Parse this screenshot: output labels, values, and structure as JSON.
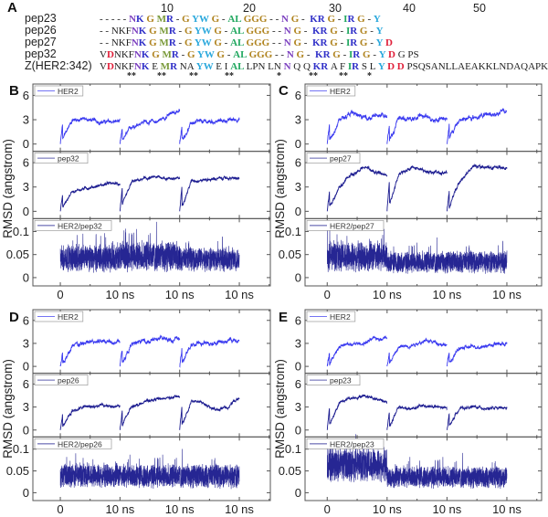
{
  "panel_a": {
    "label": "A",
    "position_numbers": [
      "10",
      "20",
      "30",
      "40",
      "50"
    ],
    "colors": {
      "k": "#222222",
      "p": "#7b3fbf",
      "b": "#3030c8",
      "g": "#b08420",
      "o": "#7a9a3a",
      "c": "#2aa8dc",
      "n": "#22a860",
      "r": "#e0203a"
    },
    "rows": [
      {
        "name": "pep23",
        "segments": [
          [
            "- - - - - ",
            "k"
          ],
          [
            "N",
            "p"
          ],
          [
            "K ",
            "b"
          ],
          [
            "G ",
            "g"
          ],
          [
            "M",
            "o"
          ],
          [
            "R",
            "b"
          ],
          [
            " - ",
            "k"
          ],
          [
            "G ",
            "g"
          ],
          [
            "YW ",
            "c"
          ],
          [
            "G ",
            "g"
          ],
          [
            "- ",
            "k"
          ],
          [
            "AL ",
            "n"
          ],
          [
            "GGG",
            "g"
          ],
          [
            " - - ",
            "k"
          ],
          [
            "N ",
            "p"
          ],
          [
            "G",
            "g"
          ],
          [
            " -  ",
            "k"
          ],
          [
            "KR ",
            "b"
          ],
          [
            "G",
            "g"
          ],
          [
            " - ",
            "k"
          ],
          [
            "I",
            "n"
          ],
          [
            "R ",
            "b"
          ],
          [
            "G",
            "g"
          ],
          [
            " - ",
            "k"
          ],
          [
            "Y",
            "c"
          ]
        ]
      },
      {
        "name": "pep26",
        "segments": [
          [
            "- - NKF",
            "k"
          ],
          [
            "N",
            "p"
          ],
          [
            "K ",
            "b"
          ],
          [
            "G ",
            "g"
          ],
          [
            "M",
            "o"
          ],
          [
            "R",
            "b"
          ],
          [
            " - ",
            "k"
          ],
          [
            "G ",
            "g"
          ],
          [
            "YW ",
            "c"
          ],
          [
            "G ",
            "g"
          ],
          [
            "- ",
            "k"
          ],
          [
            "AL ",
            "n"
          ],
          [
            "GGG",
            "g"
          ],
          [
            " - - ",
            "k"
          ],
          [
            "N ",
            "p"
          ],
          [
            "G",
            "g"
          ],
          [
            " -  ",
            "k"
          ],
          [
            "KR ",
            "b"
          ],
          [
            "G",
            "g"
          ],
          [
            " - ",
            "k"
          ],
          [
            "I",
            "n"
          ],
          [
            "R ",
            "b"
          ],
          [
            "G",
            "g"
          ],
          [
            " - ",
            "k"
          ],
          [
            "Y",
            "c"
          ]
        ]
      },
      {
        "name": "pep27",
        "segments": [
          [
            "- - NKF",
            "k"
          ],
          [
            "N",
            "p"
          ],
          [
            "K ",
            "b"
          ],
          [
            "G ",
            "g"
          ],
          [
            "M",
            "o"
          ],
          [
            "R",
            "b"
          ],
          [
            " - ",
            "k"
          ],
          [
            "G ",
            "g"
          ],
          [
            "YW ",
            "c"
          ],
          [
            "G ",
            "g"
          ],
          [
            "- ",
            "k"
          ],
          [
            "AL ",
            "n"
          ],
          [
            "GGG",
            "g"
          ],
          [
            " - - ",
            "k"
          ],
          [
            "N ",
            "p"
          ],
          [
            "G",
            "g"
          ],
          [
            " -  ",
            "k"
          ],
          [
            "KR ",
            "b"
          ],
          [
            "G",
            "g"
          ],
          [
            " - ",
            "k"
          ],
          [
            "I",
            "n"
          ],
          [
            "R ",
            "b"
          ],
          [
            "G",
            "g"
          ],
          [
            " - ",
            "k"
          ],
          [
            "Y ",
            "c"
          ],
          [
            "D",
            "r"
          ]
        ]
      },
      {
        "name": "pep32",
        "segments": [
          [
            "V",
            "k"
          ],
          [
            "D",
            "r"
          ],
          [
            "NKF",
            "k"
          ],
          [
            "N",
            "p"
          ],
          [
            "K ",
            "b"
          ],
          [
            "G ",
            "g"
          ],
          [
            "M",
            "o"
          ],
          [
            "R",
            "b"
          ],
          [
            " - ",
            "k"
          ],
          [
            "G ",
            "g"
          ],
          [
            "YW ",
            "c"
          ],
          [
            "G ",
            "g"
          ],
          [
            "- ",
            "k"
          ],
          [
            "AL ",
            "n"
          ],
          [
            "GGG",
            "g"
          ],
          [
            " - - ",
            "k"
          ],
          [
            "N ",
            "p"
          ],
          [
            "G",
            "g"
          ],
          [
            " -  ",
            "k"
          ],
          [
            "KR ",
            "b"
          ],
          [
            "G",
            "g"
          ],
          [
            " - ",
            "k"
          ],
          [
            "I",
            "n"
          ],
          [
            "R ",
            "b"
          ],
          [
            "G",
            "g"
          ],
          [
            " - ",
            "k"
          ],
          [
            "Y ",
            "c"
          ],
          [
            "D ",
            "r"
          ],
          [
            "G PS",
            "k"
          ]
        ]
      },
      {
        "name": "Z(HER2:342)",
        "segments": [
          [
            "V",
            "k"
          ],
          [
            "D",
            "r"
          ],
          [
            "NKF",
            "k"
          ],
          [
            "N",
            "p"
          ],
          [
            "K ",
            "b"
          ],
          [
            "E ",
            "k"
          ],
          [
            "M",
            "o"
          ],
          [
            "R ",
            "b"
          ],
          [
            "NA ",
            "k"
          ],
          [
            "YW ",
            "c"
          ],
          [
            "E I ",
            "k"
          ],
          [
            "AL ",
            "n"
          ],
          [
            "LPN LN ",
            "k"
          ],
          [
            "N ",
            "p"
          ],
          [
            "Q Q ",
            "k"
          ],
          [
            "KR ",
            "b"
          ],
          [
            "A F ",
            "k"
          ],
          [
            "I",
            "n"
          ],
          [
            "R ",
            "b"
          ],
          [
            "S L ",
            "k"
          ],
          [
            "Y ",
            "c"
          ],
          [
            "D D ",
            "r"
          ],
          [
            "PSQSANLLAEAKKLNDAQAPK",
            "k"
          ]
        ]
      }
    ],
    "conservation": [
      "**",
      "**",
      "**",
      "**",
      "*",
      "**",
      "**",
      "*"
    ]
  },
  "chart_data": [
    {
      "panel": "B",
      "type": "line",
      "ylabel": "RMSD (angstrom)",
      "x_tick_labels": [
        "0",
        "10 ns",
        "10 ns",
        "10 ns"
      ],
      "x_ticks": [
        0,
        10,
        20,
        30
      ],
      "xlim": [
        -4.6,
        35.2
      ],
      "grid": false,
      "subplots": [
        {
          "legend": "HER2",
          "color": "#3a3af0",
          "ylim": [
            -0.9,
            7.4
          ],
          "y_ticks": [
            "0",
            "3",
            "6"
          ],
          "y_tick_values": [
            0,
            3,
            6
          ],
          "noise": 0.25,
          "replicas_ns_0_2_4_6_8_10": [
            [
              0,
              3.0,
              3.1,
              2.8,
              2.7,
              2.8
            ],
            [
              0,
              2.2,
              2.8,
              2.7,
              3.5,
              4.2
            ],
            [
              0,
              2.6,
              2.7,
              2.8,
              2.9,
              3.1
            ]
          ]
        },
        {
          "legend": "pep32",
          "color": "#1c1c90",
          "ylim": [
            -0.9,
            7.4
          ],
          "y_ticks": [
            "0",
            "3",
            "6"
          ],
          "y_tick_values": [
            0,
            3,
            6
          ],
          "noise": 0.18,
          "replicas_ns_0_2_4_6_8_10": [
            [
              0,
              2.5,
              2.8,
              3.1,
              3.4,
              3.4
            ],
            [
              0,
              3.6,
              4.0,
              4.2,
              4.1,
              4.0
            ],
            [
              0,
              3.8,
              3.9,
              4.0,
              4.1,
              4.0
            ]
          ]
        },
        {
          "legend": "HER2/pep32",
          "color": "#000080",
          "ylim": [
            -0.018,
            0.128
          ],
          "y_ticks": [
            "0",
            "0.05",
            "0.1"
          ],
          "y_tick_values": [
            0,
            0.05,
            0.1
          ],
          "band": true,
          "replica_mean": [
            0.042,
            0.046,
            0.04
          ],
          "replica_spread": [
            0.032,
            0.036,
            0.028
          ]
        }
      ]
    },
    {
      "panel": "C",
      "type": "line",
      "ylabel": "RMSD (angstrom)",
      "x_tick_labels": [
        "0",
        "10 ns",
        "10 ns",
        "10 ns"
      ],
      "x_ticks": [
        0,
        10,
        20,
        30
      ],
      "xlim": [
        -3.7,
        35.8
      ],
      "grid": false,
      "subplots": [
        {
          "legend": "HER2",
          "color": "#3a3af0",
          "ylim": [
            -0.9,
            7.4
          ],
          "y_ticks": [
            "0",
            "3",
            "6"
          ],
          "y_tick_values": [
            0,
            3,
            6
          ],
          "noise": 0.3,
          "replicas_ns_0_2_4_6_8_10": [
            [
              0,
              3.0,
              3.8,
              3.2,
              3.5,
              3.3
            ],
            [
              0,
              3.2,
              3.0,
              3.5,
              3.0,
              3.2
            ],
            [
              0,
              3.0,
              3.2,
              3.5,
              3.8,
              4.0
            ]
          ]
        },
        {
          "legend": "pep27",
          "color": "#1c1c90",
          "ylim": [
            -0.9,
            7.4
          ],
          "y_ticks": [
            "0",
            "3",
            "6"
          ],
          "y_tick_values": [
            0,
            3,
            6
          ],
          "noise": 0.22,
          "replicas_ns_0_2_4_6_8_10": [
            [
              0,
              3.0,
              4.5,
              5.5,
              4.8,
              4.5
            ],
            [
              0,
              4.5,
              5.5,
              5.0,
              4.8,
              4.7
            ],
            [
              0,
              3.5,
              5.5,
              5.5,
              5.3,
              5.3
            ]
          ]
        },
        {
          "legend": "HER2/pep27",
          "color": "#000080",
          "ylim": [
            -0.018,
            0.128
          ],
          "y_ticks": [
            "0",
            "0.05",
            "0.1"
          ],
          "y_tick_values": [
            0,
            0.05,
            0.1
          ],
          "band": true,
          "replica_mean": [
            0.046,
            0.033,
            0.034
          ],
          "replica_spread": [
            0.036,
            0.026,
            0.026
          ]
        }
      ]
    },
    {
      "panel": "D",
      "type": "line",
      "ylabel": "RMSD (angstrom)",
      "x_tick_labels": [
        "0",
        "10 ns",
        "10 ns",
        "10 ns"
      ],
      "x_ticks": [
        0,
        10,
        20,
        30
      ],
      "xlim": [
        -4.6,
        35.2
      ],
      "grid": false,
      "subplots": [
        {
          "legend": "HER2",
          "color": "#3a3af0",
          "ylim": [
            -0.9,
            7.4
          ],
          "y_ticks": [
            "0",
            "3",
            "6"
          ],
          "y_tick_values": [
            0,
            3,
            6
          ],
          "noise": 0.3,
          "replicas_ns_0_2_4_6_8_10": [
            [
              0,
              2.5,
              3.0,
              3.2,
              3.4,
              3.3
            ],
            [
              0,
              2.8,
              3.3,
              3.5,
              3.6,
              3.5
            ],
            [
              0,
              2.8,
              3.0,
              3.1,
              3.3,
              3.4
            ]
          ]
        },
        {
          "legend": "pep26",
          "color": "#1c1c90",
          "ylim": [
            -0.9,
            7.4
          ],
          "y_ticks": [
            "0",
            "3",
            "6"
          ],
          "y_tick_values": [
            0,
            3,
            6
          ],
          "noise": 0.2,
          "replicas_ns_0_2_4_6_8_10": [
            [
              0,
              2.5,
              3.0,
              3.2,
              3.1,
              3.2
            ],
            [
              0,
              3.2,
              3.6,
              4.0,
              4.2,
              4.3
            ],
            [
              0,
              3.8,
              3.5,
              2.6,
              3.0,
              4.2
            ]
          ]
        },
        {
          "legend": "HER2/pep26",
          "color": "#000080",
          "ylim": [
            -0.018,
            0.128
          ],
          "y_ticks": [
            "0",
            "0.05",
            "0.1"
          ],
          "y_tick_values": [
            0,
            0.05,
            0.1
          ],
          "band": true,
          "replica_mean": [
            0.04,
            0.038,
            0.038
          ],
          "replica_spread": [
            0.03,
            0.03,
            0.03
          ]
        }
      ]
    },
    {
      "panel": "E",
      "type": "line",
      "ylabel": "RMSD (angstrom)",
      "x_tick_labels": [
        "0",
        "10 ns",
        "10 ns",
        "10 ns"
      ],
      "x_ticks": [
        0,
        10,
        20,
        30
      ],
      "xlim": [
        -3.7,
        35.8
      ],
      "grid": false,
      "subplots": [
        {
          "legend": "HER2",
          "color": "#3a3af0",
          "ylim": [
            -0.9,
            7.4
          ],
          "y_ticks": [
            "0",
            "3",
            "6"
          ],
          "y_tick_values": [
            0,
            3,
            6
          ],
          "noise": 0.25,
          "replicas_ns_0_2_4_6_8_10": [
            [
              0,
              2.7,
              2.8,
              3.0,
              3.6,
              3.8
            ],
            [
              0,
              2.5,
              2.8,
              3.3,
              3.2,
              2.8
            ],
            [
              0,
              2.3,
              2.5,
              2.7,
              2.9,
              3.0
            ]
          ]
        },
        {
          "legend": "pep23",
          "color": "#1c1c90",
          "ylim": [
            -0.9,
            7.4
          ],
          "y_ticks": [
            "0",
            "3",
            "6"
          ],
          "y_tick_values": [
            0,
            3,
            6
          ],
          "noise": 0.2,
          "replicas_ns_0_2_4_6_8_10": [
            [
              0,
              3.5,
              4.2,
              4.5,
              4.2,
              3.6
            ],
            [
              0,
              3.0,
              2.7,
              3.2,
              3.0,
              2.8
            ],
            [
              0,
              2.8,
              3.0,
              2.9,
              2.8,
              2.8
            ]
          ]
        },
        {
          "legend": "HER2/pep23",
          "color": "#000080",
          "ylim": [
            -0.018,
            0.128
          ],
          "y_ticks": [
            "0",
            "0.05",
            "0.1"
          ],
          "y_tick_values": [
            0,
            0.05,
            0.1
          ],
          "band": true,
          "replica_mean": [
            0.064,
            0.036,
            0.035
          ],
          "replica_spread": [
            0.042,
            0.028,
            0.027
          ]
        }
      ]
    }
  ]
}
